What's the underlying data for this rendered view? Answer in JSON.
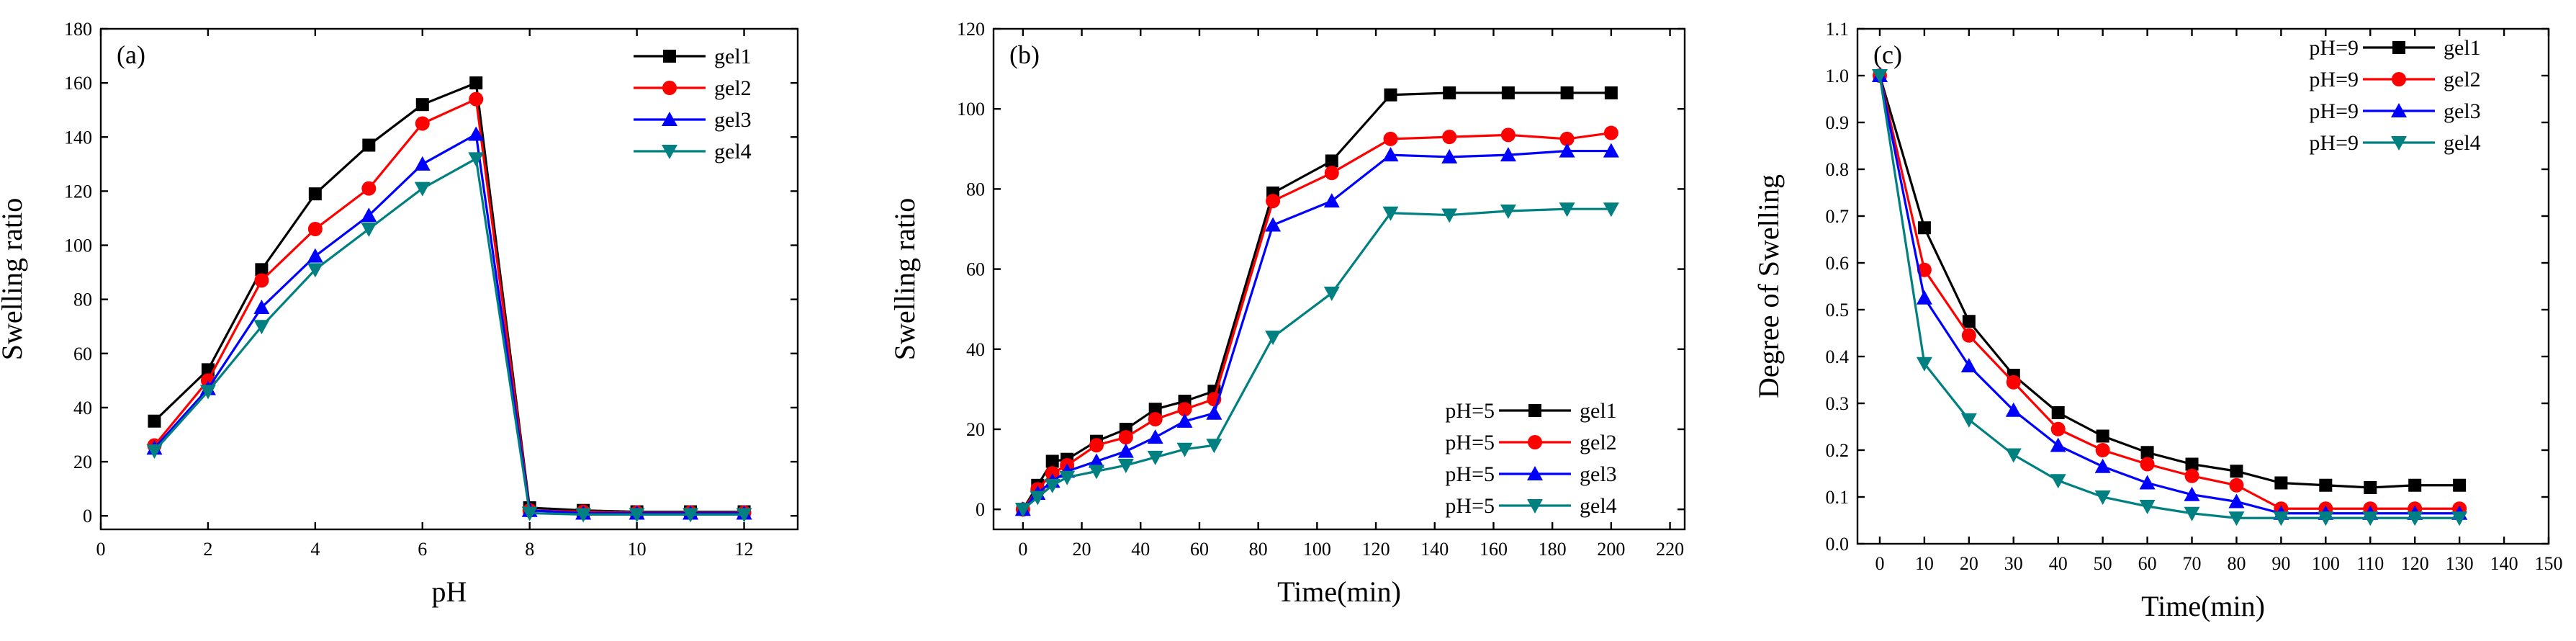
{
  "chart_data": [
    {
      "type": "line",
      "panel_label": "(a)",
      "xlabel": "pH",
      "ylabel": "Swelling ratio",
      "xlim": [
        0,
        13
      ],
      "ylim": [
        -5,
        180
      ],
      "xticks": [
        0,
        2,
        4,
        6,
        8,
        10,
        12
      ],
      "yticks": [
        0,
        20,
        40,
        60,
        80,
        100,
        120,
        140,
        160,
        180
      ],
      "legend_position": "top-right",
      "series": [
        {
          "name": "gel1",
          "legend_label": "gel1",
          "color": "#000000",
          "marker": "square",
          "x": [
            1,
            2,
            3,
            4,
            5,
            6,
            7,
            8,
            9,
            10,
            11,
            12
          ],
          "y": [
            35,
            54,
            91,
            119,
            137,
            152,
            160,
            3,
            2,
            1.5,
            1.5,
            1.5
          ]
        },
        {
          "name": "gel2",
          "legend_label": "gel2",
          "color": "#ff0000",
          "marker": "circle",
          "x": [
            1,
            2,
            3,
            4,
            5,
            6,
            7,
            8,
            9,
            10,
            11,
            12
          ],
          "y": [
            26,
            50,
            87,
            106,
            121,
            145,
            154,
            2,
            1.5,
            1.2,
            1.2,
            1.2
          ]
        },
        {
          "name": "gel3",
          "legend_label": "gel3",
          "color": "#0000ff",
          "marker": "triangle-up",
          "x": [
            1,
            2,
            3,
            4,
            5,
            6,
            7,
            8,
            9,
            10,
            11,
            12
          ],
          "y": [
            25,
            47,
            77,
            96,
            111,
            130,
            141,
            2,
            1,
            1,
            1,
            1
          ]
        },
        {
          "name": "gel4",
          "legend_label": "gel4",
          "color": "#008080",
          "marker": "triangle-down",
          "x": [
            1,
            2,
            3,
            4,
            5,
            6,
            7,
            8,
            9,
            10,
            11,
            12
          ],
          "y": [
            24,
            46,
            70,
            91,
            106,
            121,
            132,
            1,
            0.5,
            0.5,
            0.5,
            0.5
          ]
        }
      ]
    },
    {
      "type": "line",
      "panel_label": "(b)",
      "xlabel": "Time(min)",
      "ylabel": "Swelling ratio",
      "xlim": [
        -10,
        225
      ],
      "ylim": [
        -5,
        120
      ],
      "xticks": [
        0,
        20,
        40,
        60,
        80,
        100,
        120,
        140,
        160,
        180,
        200,
        220
      ],
      "yticks": [
        0,
        20,
        40,
        60,
        80,
        100,
        120
      ],
      "legend_position": "bottom-right",
      "series": [
        {
          "name": "gel1",
          "legend_label": "pH=5 gel1",
          "color": "#000000",
          "marker": "square",
          "x": [
            0,
            5,
            10,
            15,
            25,
            35,
            45,
            55,
            65,
            85,
            105,
            125,
            145,
            165,
            185,
            200
          ],
          "y": [
            0,
            6,
            12,
            12.5,
            17,
            20,
            25,
            27,
            29.5,
            79,
            87,
            103.5,
            104,
            104,
            104,
            104
          ]
        },
        {
          "name": "gel2",
          "legend_label": "pH=5 gel2",
          "color": "#ff0000",
          "marker": "circle",
          "x": [
            0,
            5,
            10,
            15,
            25,
            35,
            45,
            55,
            65,
            85,
            105,
            125,
            145,
            165,
            185,
            200
          ],
          "y": [
            0,
            5,
            9,
            11,
            16,
            18,
            22.5,
            25,
            27.5,
            77,
            84,
            92.5,
            93,
            93.5,
            92.5,
            94
          ]
        },
        {
          "name": "gel3",
          "legend_label": "pH=5 gel3",
          "color": "#0000ff",
          "marker": "triangle-up",
          "x": [
            0,
            5,
            10,
            15,
            25,
            35,
            45,
            55,
            65,
            85,
            105,
            125,
            145,
            165,
            185,
            200
          ],
          "y": [
            0,
            4,
            7,
            9.5,
            12,
            14.5,
            18,
            22,
            24,
            71,
            77,
            88.5,
            88,
            88.5,
            89.5,
            89.5
          ]
        },
        {
          "name": "gel4",
          "legend_label": "pH=5 gel4",
          "color": "#008080",
          "marker": "triangle-down",
          "x": [
            0,
            5,
            10,
            15,
            25,
            35,
            45,
            55,
            65,
            85,
            105,
            125,
            145,
            165,
            185,
            200
          ],
          "y": [
            0,
            3,
            6,
            8,
            9.5,
            11,
            13,
            15,
            16,
            43,
            54,
            74,
            73.5,
            74.5,
            75,
            75
          ]
        }
      ]
    },
    {
      "type": "line",
      "panel_label": "(c)",
      "xlabel": "Time(min)",
      "ylabel": "Degree of Swelling",
      "xlim": [
        -5,
        150
      ],
      "ylim": [
        0,
        1.1
      ],
      "xticks": [
        0,
        10,
        20,
        30,
        40,
        50,
        60,
        70,
        80,
        90,
        100,
        110,
        120,
        130,
        140,
        150
      ],
      "yticks": [
        0.0,
        0.1,
        0.2,
        0.3,
        0.4,
        0.5,
        0.6,
        0.7,
        0.8,
        0.9,
        1.0,
        1.1
      ],
      "ytick_labels": [
        "0.0",
        "0.1",
        "0.2",
        "0.3",
        "0.4",
        "0.5",
        "0.6",
        "0.7",
        "0.8",
        "0.9",
        "1.0",
        "1.1"
      ],
      "legend_position": "top-right",
      "series": [
        {
          "name": "gel1",
          "legend_label": "pH=9 gel1",
          "color": "#000000",
          "marker": "square",
          "x": [
            0,
            10,
            20,
            30,
            40,
            50,
            60,
            70,
            80,
            90,
            100,
            110,
            120,
            130
          ],
          "y": [
            1.0,
            0.675,
            0.475,
            0.36,
            0.28,
            0.23,
            0.195,
            0.17,
            0.155,
            0.13,
            0.125,
            0.12,
            0.125,
            0.125
          ]
        },
        {
          "name": "gel2",
          "legend_label": "pH=9 gel2",
          "color": "#ff0000",
          "marker": "circle",
          "x": [
            0,
            10,
            20,
            30,
            40,
            50,
            60,
            70,
            80,
            90,
            100,
            110,
            120,
            130
          ],
          "y": [
            1.0,
            0.585,
            0.445,
            0.345,
            0.245,
            0.2,
            0.17,
            0.145,
            0.125,
            0.075,
            0.075,
            0.075,
            0.075,
            0.075
          ]
        },
        {
          "name": "gel3",
          "legend_label": "pH=9 gel3",
          "color": "#0000ff",
          "marker": "triangle-up",
          "x": [
            0,
            10,
            20,
            30,
            40,
            50,
            60,
            70,
            80,
            90,
            100,
            110,
            120,
            130
          ],
          "y": [
            1.0,
            0.525,
            0.38,
            0.285,
            0.21,
            0.165,
            0.13,
            0.105,
            0.09,
            0.065,
            0.065,
            0.065,
            0.065,
            0.065
          ]
        },
        {
          "name": "gel4",
          "legend_label": "pH=9 gel4",
          "color": "#008080",
          "marker": "triangle-down",
          "x": [
            0,
            10,
            20,
            30,
            40,
            50,
            60,
            70,
            80,
            90,
            100,
            110,
            120,
            130
          ],
          "y": [
            1.0,
            0.385,
            0.265,
            0.19,
            0.135,
            0.1,
            0.08,
            0.065,
            0.055,
            0.055,
            0.055,
            0.055,
            0.055,
            0.055
          ]
        }
      ]
    }
  ]
}
